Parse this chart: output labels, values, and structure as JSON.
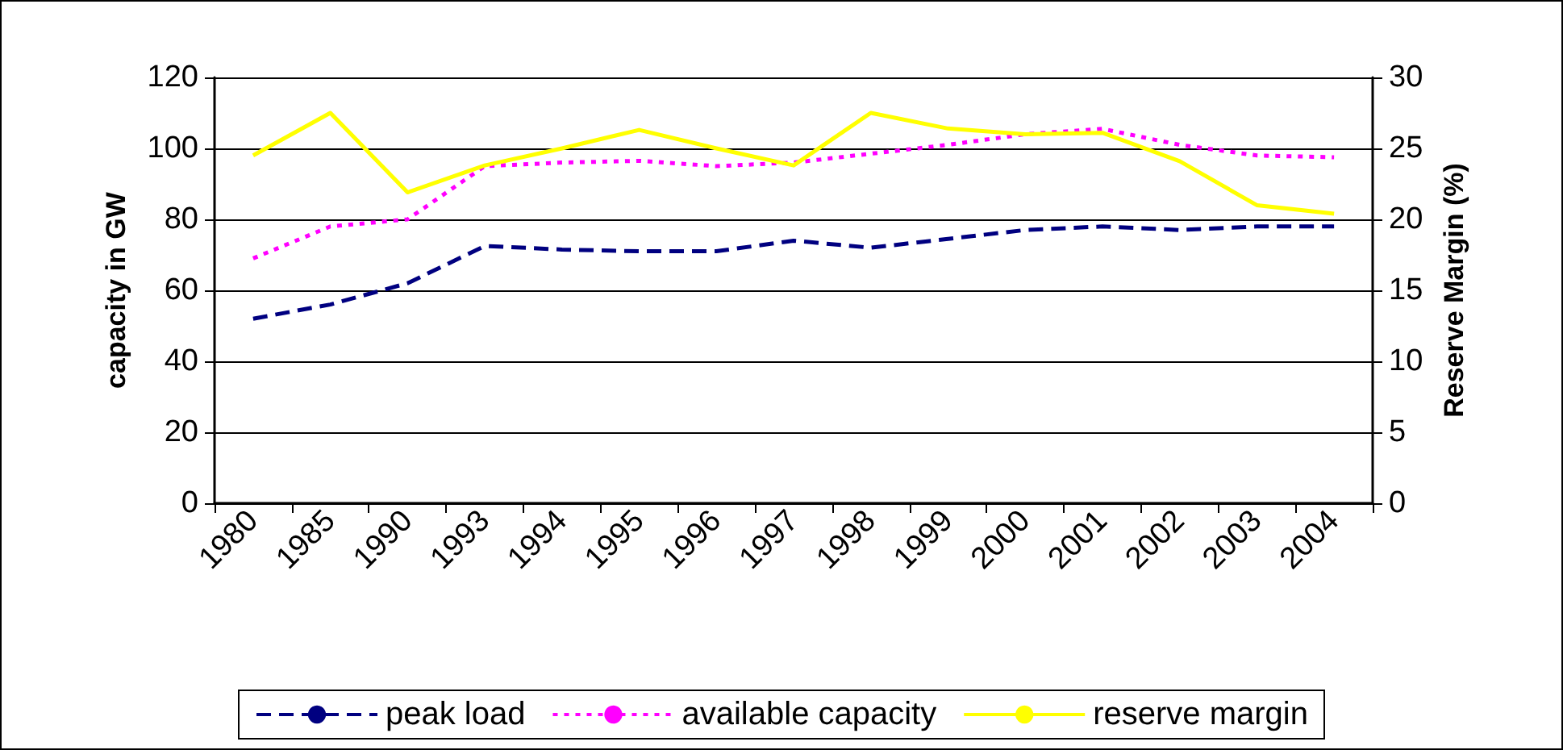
{
  "chart_data": {
    "type": "line",
    "ylabel": "capacity in GW",
    "y2label": "Reserve Margin (%)",
    "categories": [
      "1980",
      "1985",
      "1990",
      "1993",
      "1994",
      "1995",
      "1996",
      "1997",
      "1998",
      "1999",
      "2000",
      "2001",
      "2002",
      "2003",
      "2004"
    ],
    "series": [
      {
        "name": "peak load",
        "color": "#000080",
        "line_style": "dashed",
        "values": [
          52,
          56,
          62,
          72.5,
          71.5,
          71,
          71,
          74,
          72,
          74.5,
          77,
          78,
          77,
          78,
          78
        ]
      },
      {
        "name": "available capacity",
        "color": "#ff00ff",
        "line_style": "dotted",
        "values": [
          69,
          78,
          80,
          95,
          96,
          96.5,
          95,
          96,
          98.5,
          101,
          104,
          105.5,
          101,
          98,
          97.5
        ]
      },
      {
        "name": "reserve margin",
        "color": "#ffff00",
        "line_style": "solid",
        "axis": "y2",
        "values": [
          24.5,
          27.5,
          21.9,
          23.8,
          25,
          26.3,
          25,
          23.8,
          27.5,
          26.4,
          26,
          26.1,
          24.1,
          21,
          20.4
        ]
      }
    ],
    "ylim": [
      0,
      120
    ],
    "yticks": [
      0,
      20,
      40,
      60,
      80,
      100,
      120
    ],
    "y2lim": [
      0,
      30
    ],
    "y2ticks": [
      0,
      5,
      10,
      15,
      20,
      25,
      30
    ],
    "grid": "y",
    "legend": "bottom",
    "marker": "none"
  }
}
